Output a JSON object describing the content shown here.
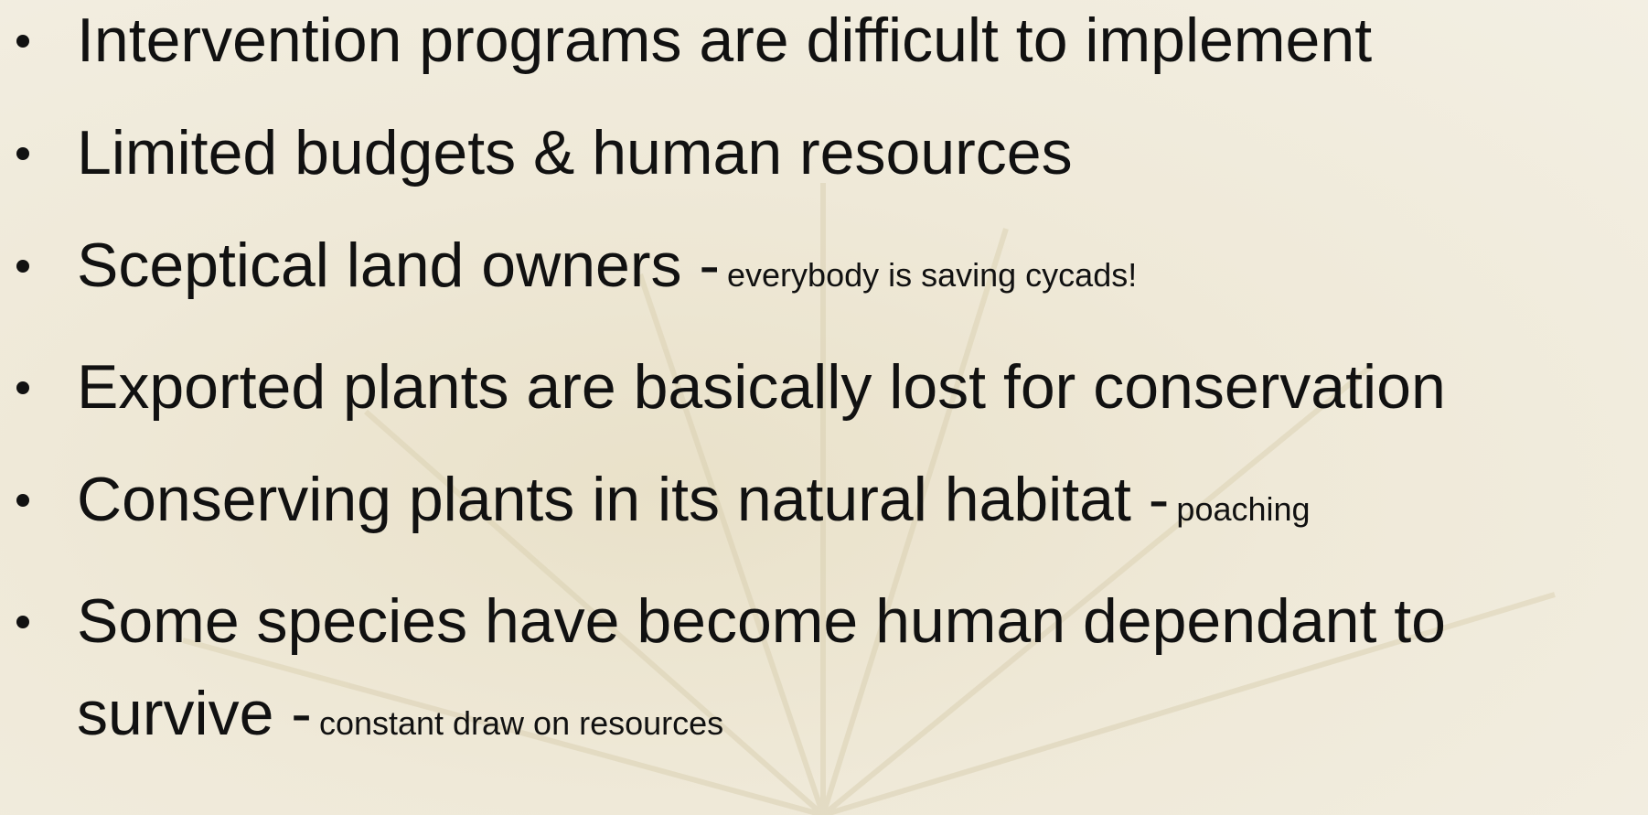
{
  "bullets": [
    {
      "text": "Intervention programs are difficult to implement"
    },
    {
      "text": "Limited budgets & human resources"
    },
    {
      "text": "Sceptical land owners -",
      "note": "everybody is saving cycads!"
    },
    {
      "text": "Exported plants are basically lost for conservation"
    },
    {
      "text": "Conserving plants in its natural habitat -",
      "note": "poaching"
    },
    {
      "text": "Some species have become human dependant to survive -",
      "note": "constant draw on resources"
    }
  ]
}
